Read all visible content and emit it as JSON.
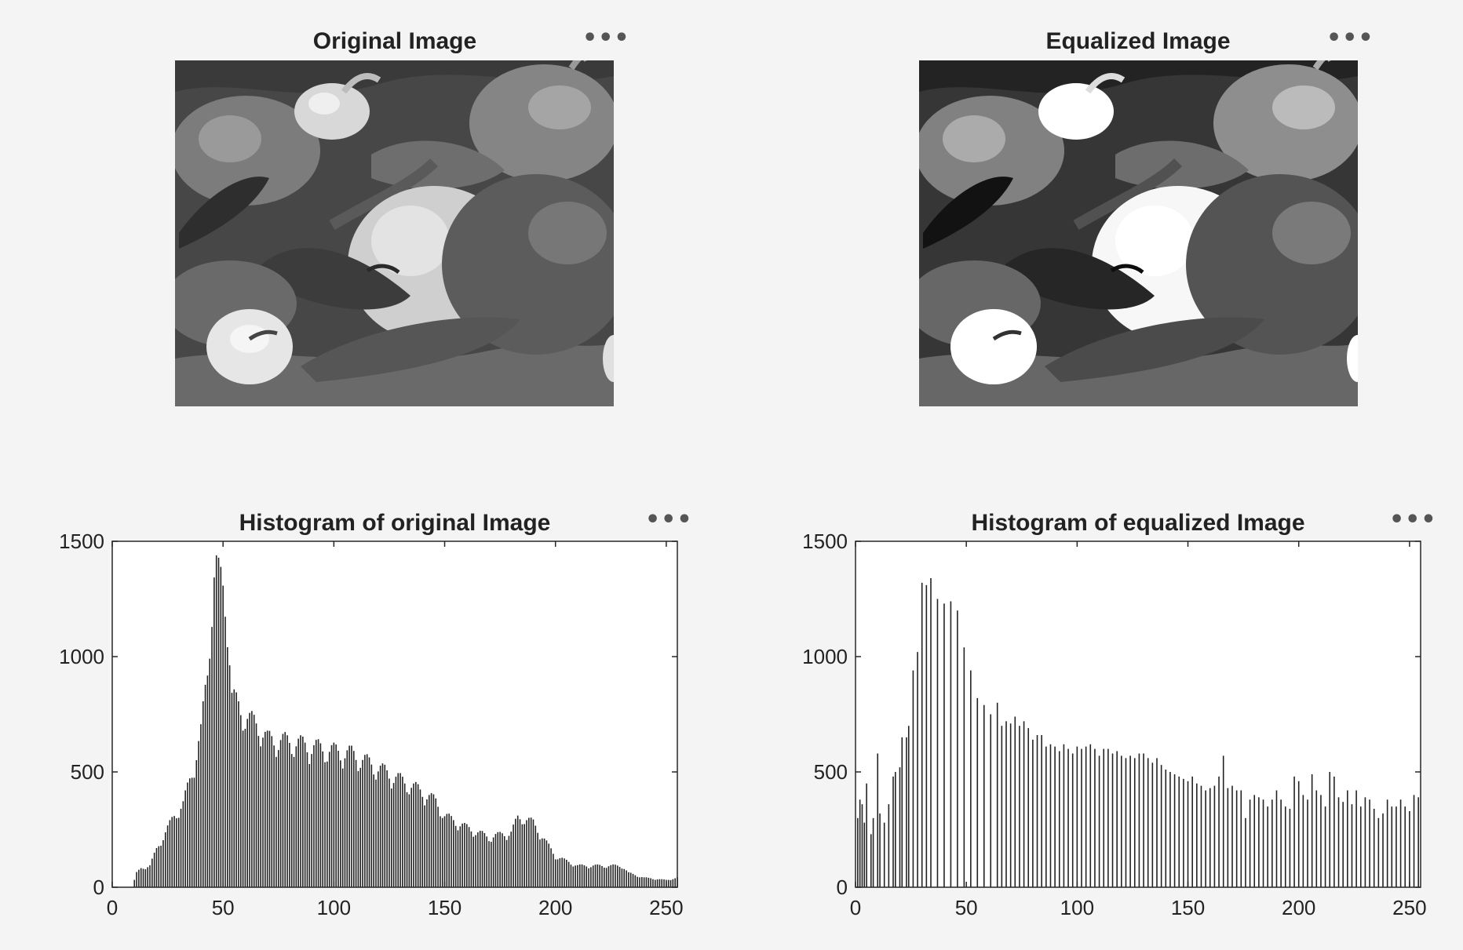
{
  "figure": {
    "panels": [
      {
        "title": "Original Image",
        "menu": "•••"
      },
      {
        "title": "Equalized Image",
        "menu": "•••"
      }
    ]
  },
  "colors": {
    "background": "#f4f4f4",
    "axes_face": "#ffffff",
    "stem": "#222222",
    "axis": "#262626"
  },
  "chart_data": [
    {
      "type": "bar",
      "title": "Histogram of original Image",
      "menu": "•••",
      "xlim": [
        0,
        255
      ],
      "ylim": [
        0,
        1500
      ],
      "xticks": [
        0,
        50,
        100,
        150,
        200,
        250
      ],
      "yticks": [
        0,
        500,
        1000,
        1500
      ],
      "anchors": [
        [
          0,
          0
        ],
        [
          9,
          0
        ],
        [
          11,
          60
        ],
        [
          13,
          80
        ],
        [
          17,
          90
        ],
        [
          20,
          160
        ],
        [
          24,
          230
        ],
        [
          28,
          300
        ],
        [
          32,
          350
        ],
        [
          36,
          480
        ],
        [
          40,
          650
        ],
        [
          43,
          900
        ],
        [
          45,
          1200
        ],
        [
          46,
          1320
        ],
        [
          47,
          1340
        ],
        [
          48,
          1300
        ],
        [
          50,
          1250
        ],
        [
          52,
          1150
        ],
        [
          54,
          800
        ],
        [
          58,
          740
        ],
        [
          62,
          700
        ],
        [
          66,
          680
        ],
        [
          70,
          620
        ],
        [
          80,
          610
        ],
        [
          90,
          590
        ],
        [
          100,
          570
        ],
        [
          108,
          560
        ],
        [
          116,
          520
        ],
        [
          120,
          500
        ],
        [
          130,
          450
        ],
        [
          140,
          400
        ],
        [
          146,
          360
        ],
        [
          150,
          300
        ],
        [
          160,
          250
        ],
        [
          170,
          210
        ],
        [
          180,
          230
        ],
        [
          183,
          290
        ],
        [
          186,
          290
        ],
        [
          190,
          270
        ],
        [
          195,
          200
        ],
        [
          200,
          130
        ],
        [
          210,
          90
        ],
        [
          220,
          90
        ],
        [
          230,
          90
        ],
        [
          233,
          60
        ],
        [
          240,
          40
        ],
        [
          250,
          30
        ],
        [
          255,
          40
        ]
      ]
    },
    {
      "type": "bar",
      "title": "Histogram of equalized Image",
      "menu": "•••",
      "xlim": [
        0,
        255
      ],
      "ylim": [
        0,
        1500
      ],
      "xticks": [
        0,
        50,
        100,
        150,
        200,
        250
      ],
      "yticks": [
        0,
        500,
        1000,
        1500
      ],
      "x": [
        1,
        2,
        3,
        4,
        5,
        7,
        8,
        10,
        11,
        13,
        15,
        17,
        18,
        20,
        21,
        23,
        24,
        26,
        28,
        30,
        32,
        34,
        37,
        40,
        43,
        46,
        49,
        52,
        55,
        58,
        61,
        64,
        66,
        68,
        70,
        72,
        74,
        76,
        78,
        80,
        82,
        84,
        86,
        88,
        90,
        92,
        94,
        96,
        98,
        100,
        102,
        104,
        106,
        108,
        110,
        112,
        114,
        116,
        118,
        120,
        122,
        124,
        126,
        128,
        130,
        132,
        134,
        136,
        138,
        140,
        142,
        144,
        146,
        148,
        150,
        152,
        154,
        156,
        158,
        160,
        162,
        164,
        166,
        168,
        170,
        172,
        174,
        176,
        178,
        180,
        182,
        184,
        186,
        188,
        190,
        192,
        194,
        196,
        198,
        200,
        202,
        204,
        206,
        208,
        210,
        212,
        214,
        216,
        218,
        220,
        222,
        224,
        226,
        228,
        230,
        232,
        234,
        236,
        238,
        240,
        242,
        244,
        246,
        248,
        250,
        252,
        254
      ],
      "y": [
        300,
        380,
        360,
        280,
        450,
        230,
        300,
        580,
        320,
        280,
        360,
        480,
        500,
        520,
        650,
        650,
        700,
        940,
        1020,
        1320,
        1310,
        1340,
        1250,
        1230,
        1240,
        1200,
        1040,
        940,
        820,
        790,
        750,
        800,
        700,
        720,
        710,
        740,
        700,
        720,
        690,
        640,
        660,
        660,
        610,
        620,
        610,
        590,
        620,
        600,
        580,
        610,
        600,
        610,
        620,
        600,
        570,
        600,
        600,
        580,
        590,
        570,
        560,
        570,
        560,
        580,
        580,
        560,
        540,
        560,
        530,
        510,
        500,
        490,
        480,
        470,
        460,
        480,
        450,
        440,
        420,
        430,
        440,
        480,
        570,
        430,
        440,
        420,
        420,
        300,
        380,
        400,
        390,
        380,
        350,
        380,
        420,
        380,
        350,
        340,
        480,
        460,
        400,
        380,
        490,
        420,
        400,
        350,
        500,
        480,
        390,
        370,
        420,
        360,
        420,
        350,
        390,
        380,
        340,
        300,
        320,
        380,
        350,
        350,
        380,
        350,
        330,
        400,
        390
      ]
    }
  ]
}
